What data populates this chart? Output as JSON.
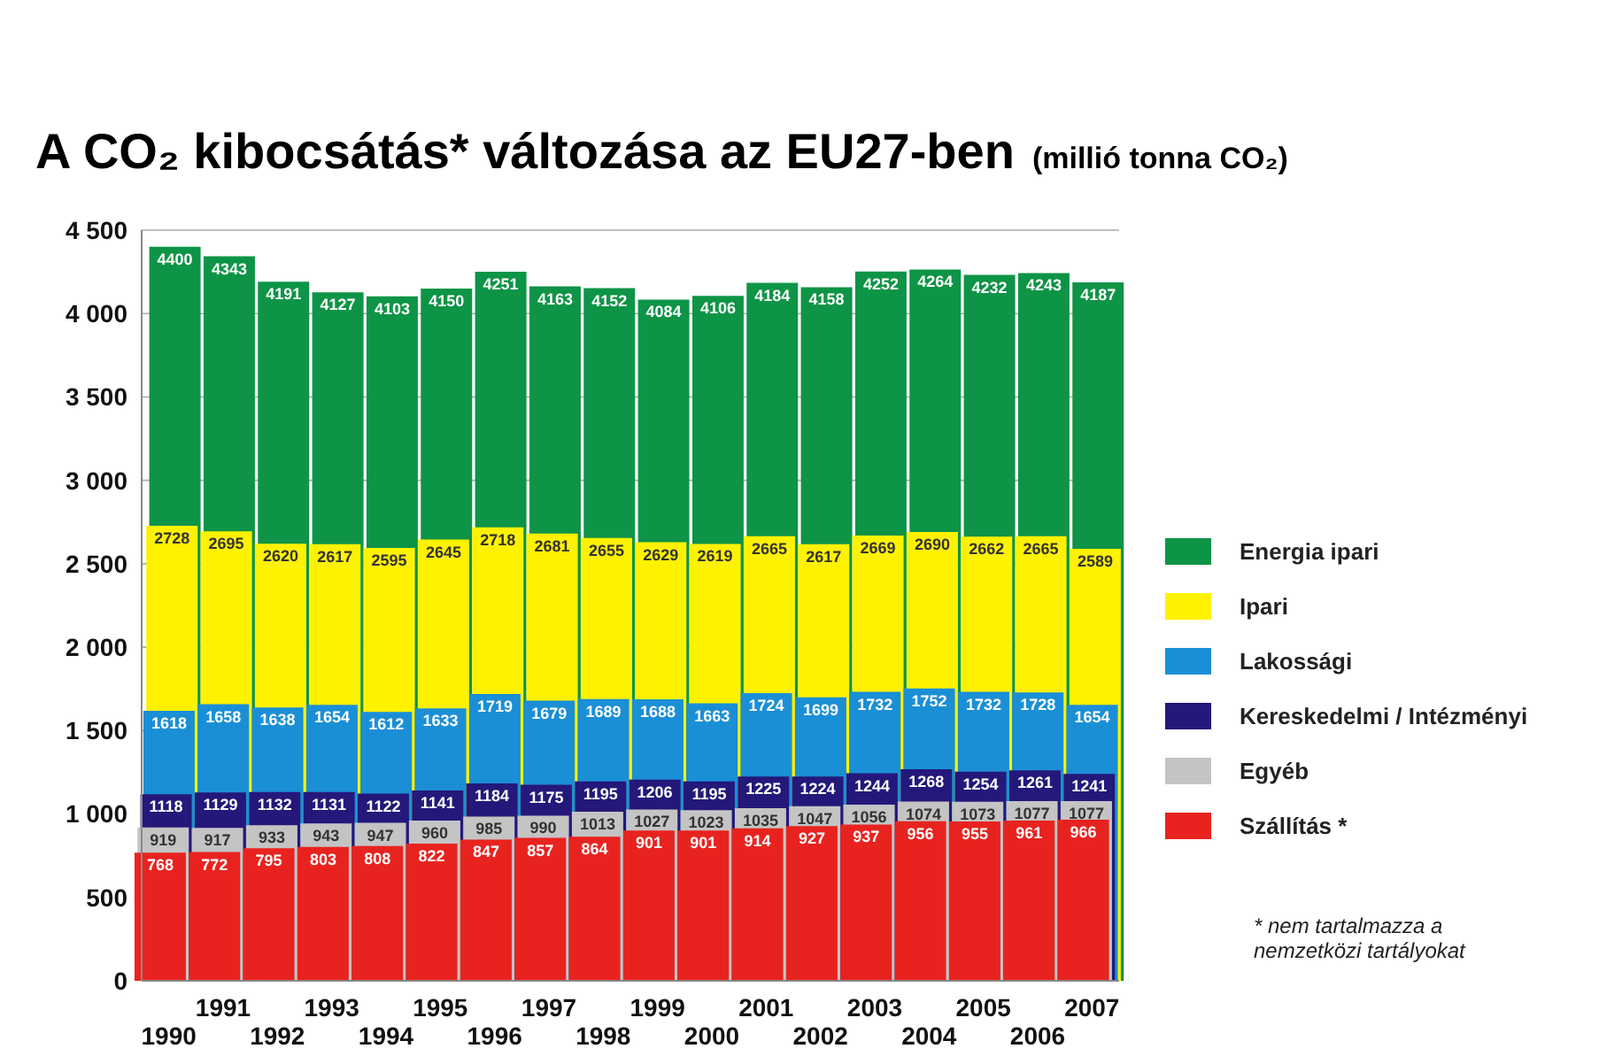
{
  "chart_data": {
    "type": "bar",
    "title": "A CO₂ kibocsátás* változása az EU27-ben",
    "subtitle": "(millió tonna CO₂)",
    "grid": "y",
    "legend": "right",
    "data_labels": true,
    "categories": [
      "1990",
      "1991",
      "1992",
      "1993",
      "1994",
      "1995",
      "1996",
      "1997",
      "1998",
      "1999",
      "2000",
      "2001",
      "2002",
      "2003",
      "2004",
      "2005",
      "2006",
      "2007"
    ],
    "ylim": [
      0,
      4500
    ],
    "yticks": [
      0,
      500,
      {
        "value": 1000,
        "label": "1 000"
      },
      {
        "value": 1500,
        "label": "1 500"
      },
      {
        "value": 2000,
        "label": "2 000"
      },
      {
        "value": 2500,
        "label": "2 500"
      },
      {
        "value": 3000,
        "label": "3 000"
      },
      {
        "value": 3500,
        "label": "3 500"
      },
      {
        "value": 4000,
        "label": "4 000"
      },
      {
        "value": 4500,
        "label": "4 500"
      }
    ],
    "series": [
      {
        "name": "Energia ipari",
        "color": "#0e9446",
        "values": [
          4400,
          4343,
          4191,
          4127,
          4103,
          4150,
          4251,
          4163,
          4152,
          4084,
          4106,
          4184,
          4158,
          4252,
          4264,
          4232,
          4243,
          4187
        ]
      },
      {
        "name": "Ipari",
        "color": "#fff200",
        "values": [
          2728,
          2695,
          2620,
          2617,
          2595,
          2645,
          2718,
          2681,
          2655,
          2629,
          2619,
          2665,
          2617,
          2669,
          2690,
          2662,
          2665,
          2589
        ]
      },
      {
        "name": "Lakossági",
        "color": "#1b8fd6",
        "values": [
          1618,
          1658,
          1638,
          1654,
          1612,
          1633,
          1719,
          1679,
          1689,
          1688,
          1663,
          1724,
          1699,
          1732,
          1752,
          1732,
          1728,
          1654
        ]
      },
      {
        "name": "Kereskedelmi / Intézményi",
        "color": "#24187a",
        "values": [
          1118,
          1129,
          1132,
          1131,
          1122,
          1141,
          1184,
          1175,
          1195,
          1206,
          1195,
          1225,
          1224,
          1244,
          1268,
          1254,
          1261,
          1241
        ]
      },
      {
        "name": "Egyéb",
        "color": "#c4c4c4",
        "values": [
          919,
          917,
          933,
          943,
          947,
          960,
          985,
          990,
          1013,
          1027,
          1023,
          1035,
          1047,
          1056,
          1074,
          1073,
          1077,
          1077
        ]
      },
      {
        "name": "Szállítás *",
        "color": "#e8231f",
        "values": [
          768,
          772,
          795,
          803,
          808,
          822,
          847,
          857,
          864,
          901,
          901,
          914,
          927,
          937,
          956,
          955,
          961,
          966
        ]
      }
    ],
    "annotations": [
      "* nem tartalmazza a nemzetközi tartályokat"
    ]
  }
}
